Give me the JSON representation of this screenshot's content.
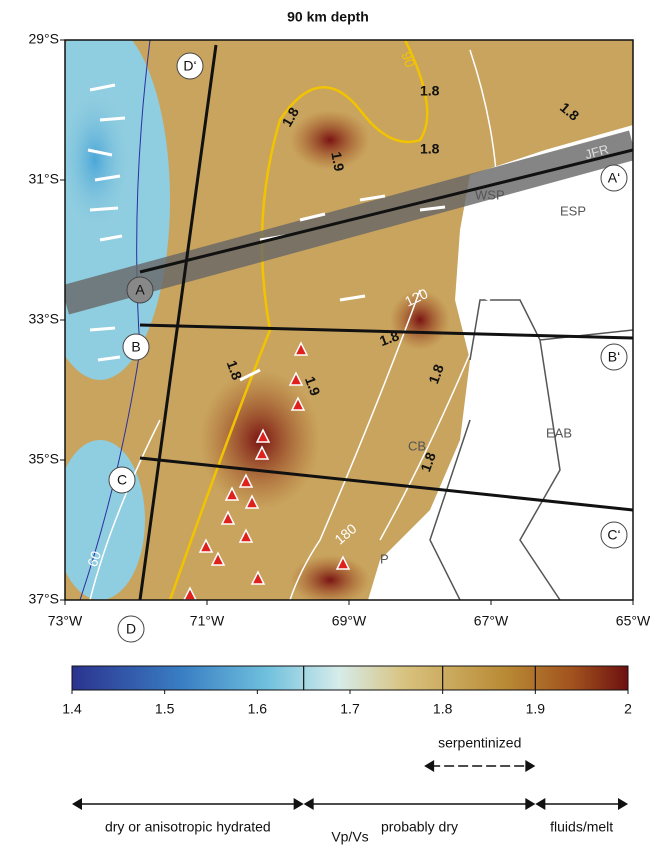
{
  "map": {
    "title": "90 km depth",
    "lonlim": [
      -73,
      -65
    ],
    "latlim": [
      -29,
      -37
    ],
    "lonticks": [
      {
        "value": -73,
        "label": "73°W"
      },
      {
        "value": -71,
        "label": "71°W"
      },
      {
        "value": -69,
        "label": "69°W"
      },
      {
        "value": -67,
        "label": "67°W"
      },
      {
        "value": -65,
        "label": "65°W"
      }
    ],
    "latticks": [
      {
        "value": -29,
        "label": "29°S"
      },
      {
        "value": -31,
        "label": "31°S"
      },
      {
        "value": -33,
        "label": "33°S"
      },
      {
        "value": -35,
        "label": "35°S"
      },
      {
        "value": -37,
        "label": "37°S"
      }
    ],
    "profiles": [
      "A",
      "A‘",
      "B",
      "B‘",
      "C",
      "C‘",
      "D",
      "D‘"
    ],
    "regions": [
      "JFR",
      "WSP",
      "ESP",
      "EAB",
      "CB",
      "P"
    ],
    "slab_contours": [
      "90",
      "120",
      "180",
      "60"
    ],
    "vpvs_contours": [
      "1.8",
      "1.9",
      "1.8",
      "1.8",
      "1.8",
      "1.9",
      "1.8",
      "1.8",
      "1.8",
      "1.8"
    ]
  },
  "colorbar": {
    "lim": [
      1.4,
      2
    ],
    "ticks": [
      1.4,
      1.5,
      1.6,
      1.7,
      1.8,
      1.9,
      2
    ],
    "marks": [
      1.65,
      1.8,
      1.9
    ],
    "label": "Vp/Vs",
    "ranges": [
      {
        "label": "serpentinized",
        "range": [
          1.78,
          1.9
        ]
      },
      {
        "label": "dry or anisotropic hydrated",
        "range": [
          1.4,
          1.65
        ]
      },
      {
        "label": "probably dry",
        "range": [
          1.65,
          1.9
        ]
      },
      {
        "label": "fluids/melt",
        "range": [
          1.9,
          2
        ]
      }
    ]
  }
}
